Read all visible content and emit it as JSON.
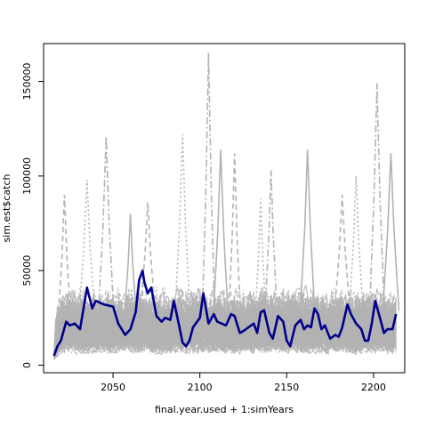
{
  "chart_data": {
    "type": "line",
    "title": "",
    "xlabel": "final.year.used + 1:simYears",
    "ylabel": "sim.est$catch",
    "xlim": [
      2010,
      2218
    ],
    "ylim": [
      -4000,
      170000
    ],
    "x_ticks": [
      2050,
      2100,
      2150,
      2200
    ],
    "y_ticks": [
      0,
      50000,
      100000,
      150000
    ],
    "x_tick_labels": [
      "2050",
      "2100",
      "2150",
      "2200"
    ],
    "y_tick_labels": [
      "0",
      "50000",
      "100000",
      "150000"
    ],
    "grid": false,
    "legend": "none",
    "colors": {
      "simulations": "#b3b3b3",
      "median": "#00008b",
      "frame": "#000000"
    },
    "simulation_band": {
      "description_note": "",
      "years": [
        2016,
        2213
      ],
      "typical_low": 5000,
      "typical_high": 50000
    },
    "simulation_peaks": [
      {
        "x": 2022,
        "y": 90000
      },
      {
        "x": 2035,
        "y": 98000
      },
      {
        "x": 2046,
        "y": 121000
      },
      {
        "x": 2060,
        "y": 80000
      },
      {
        "x": 2070,
        "y": 86000
      },
      {
        "x": 2090,
        "y": 122000
      },
      {
        "x": 2105,
        "y": 165000
      },
      {
        "x": 2112,
        "y": 114000
      },
      {
        "x": 2120,
        "y": 112000
      },
      {
        "x": 2135,
        "y": 88000
      },
      {
        "x": 2141,
        "y": 103000
      },
      {
        "x": 2162,
        "y": 114000
      },
      {
        "x": 2182,
        "y": 90000
      },
      {
        "x": 2190,
        "y": 100000
      },
      {
        "x": 2202,
        "y": 149000
      },
      {
        "x": 2210,
        "y": 112000
      }
    ],
    "series": [
      {
        "x": [
          2016,
          2018,
          2020,
          2023,
          2025,
          2028,
          2031,
          2035,
          2038,
          2040,
          2045,
          2050,
          2053,
          2055,
          2057,
          2060,
          2063,
          2065,
          2067,
          2068,
          2070,
          2072,
          2075,
          2078,
          2080,
          2083,
          2085,
          2088,
          2090,
          2092,
          2094,
          2096,
          2100,
          2102,
          2105,
          2108,
          2110,
          2115,
          2118,
          2120,
          2123,
          2125,
          2128,
          2131,
          2133,
          2135,
          2137,
          2140,
          2142,
          2145,
          2148,
          2150,
          2152,
          2155,
          2158,
          2160,
          2162,
          2164,
          2166,
          2168,
          2170,
          2172,
          2175,
          2178,
          2180,
          2182,
          2185,
          2187,
          2190,
          2193,
          2195,
          2197,
          2199,
          2201,
          2204,
          2206,
          2208,
          2211,
          2213
        ],
        "values": [
          5000,
          10000,
          13000,
          23000,
          21000,
          22000,
          19000,
          41000,
          30000,
          34000,
          32000,
          31000,
          22000,
          19000,
          16000,
          19000,
          28000,
          45000,
          50000,
          44000,
          38000,
          41000,
          26000,
          23000,
          25000,
          24000,
          34000,
          21000,
          12000,
          10000,
          13000,
          20000,
          25000,
          38000,
          22000,
          27000,
          23000,
          21000,
          27000,
          26000,
          17000,
          18000,
          20000,
          22000,
          17000,
          28000,
          29000,
          17000,
          14000,
          26000,
          23000,
          13000,
          10000,
          21000,
          24000,
          19000,
          21000,
          20000,
          30000,
          27000,
          19000,
          21000,
          14000,
          16000,
          15000,
          20000,
          32000,
          27000,
          22000,
          19000,
          13000,
          13000,
          22000,
          34000,
          24000,
          17000,
          19000,
          19000,
          27000
        ]
      }
    ]
  }
}
